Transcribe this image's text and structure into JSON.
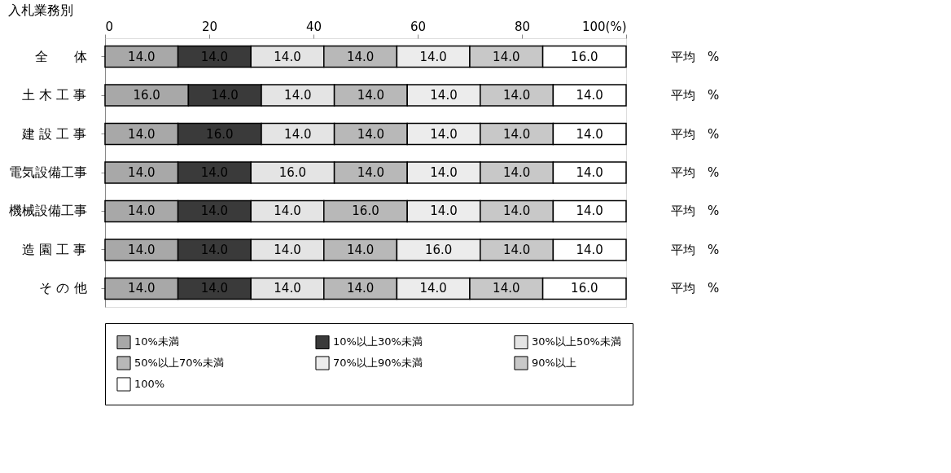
{
  "chart_data": {
    "type": "bar",
    "orientation": "horizontal",
    "stacked": true,
    "title": "入札業務別",
    "categories": [
      "全　　体",
      "土 木 工 事",
      "建 設 工 事",
      "電気設備工事",
      "機械設備工事",
      "造 園 工 事",
      "そ の 他"
    ],
    "series": [
      {
        "name": "10%未満",
        "color": "#a8a8a8",
        "values": [
          14.0,
          16.0,
          14.0,
          14.0,
          14.0,
          14.0,
          14.0
        ],
        "value_labels": [
          "14.0",
          "16.0",
          "14.0",
          "14.0",
          "14.0",
          "14.0",
          "14.0"
        ]
      },
      {
        "name": "10%以上30%未満",
        "color": "#3a3a3a",
        "values": [
          14.0,
          14.0,
          16.0,
          14.0,
          14.0,
          14.0,
          14.0
        ],
        "value_labels": [
          "14.0",
          "14.0",
          "16.0",
          "14.0",
          "14.0",
          "14.0",
          "14.0"
        ]
      },
      {
        "name": "30%以上50%未満",
        "color": "#e4e4e4",
        "values": [
          14.0,
          14.0,
          14.0,
          16.0,
          14.0,
          14.0,
          14.0
        ],
        "value_labels": [
          "14.0",
          "14.0",
          "14.0",
          "16.0",
          "14.0",
          "14.0",
          "14.0"
        ]
      },
      {
        "name": "50%以上70%未満",
        "color": "#b8b8b8",
        "values": [
          14.0,
          14.0,
          14.0,
          14.0,
          16.0,
          14.0,
          14.0
        ],
        "value_labels": [
          "14.0",
          "14.0",
          "14.0",
          "14.0",
          "16.0",
          "14.0",
          "14.0"
        ]
      },
      {
        "name": "70%以上90%未満",
        "color": "#ececec",
        "values": [
          14.0,
          14.0,
          14.0,
          14.0,
          14.0,
          16.0,
          14.0
        ],
        "value_labels": [
          "14.0",
          "14.0",
          "14.0",
          "14.0",
          "14.0",
          "16.0",
          "14.0"
        ]
      },
      {
        "name": "90%以上",
        "color": "#c8c8c8",
        "values": [
          14.0,
          14.0,
          14.0,
          14.0,
          14.0,
          14.0,
          14.0
        ],
        "value_labels": [
          "14.0",
          "14.0",
          "14.0",
          "14.0",
          "14.0",
          "14.0",
          "14.0"
        ]
      },
      {
        "name": "100%",
        "color": "#ffffff",
        "values": [
          16.0,
          14.0,
          14.0,
          14.0,
          14.0,
          14.0,
          16.0
        ],
        "value_labels": [
          "16.0",
          "14.0",
          "14.0",
          "14.0",
          "14.0",
          "14.0",
          "16.0"
        ]
      }
    ],
    "xlim": [
      0,
      100
    ],
    "xticks": [
      0,
      20,
      40,
      60,
      80,
      {
        "value": 100,
        "label": "100(%)"
      }
    ],
    "grid": false,
    "legend": "bottom",
    "annotations": [
      "平均　%",
      "平均　%",
      "平均　%",
      "平均　%",
      "平均　%",
      "平均　%",
      "平均　%"
    ]
  }
}
